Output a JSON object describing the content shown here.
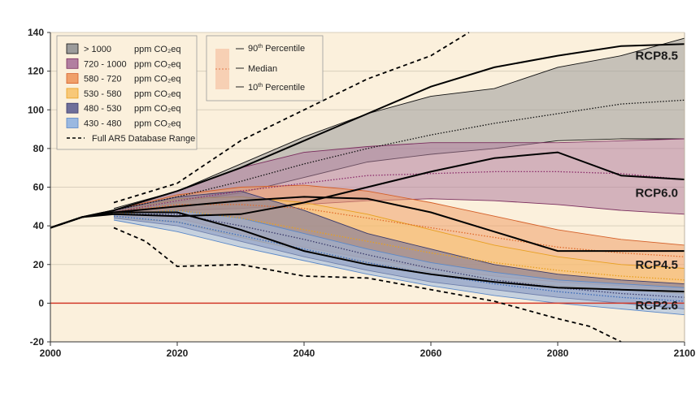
{
  "chart_data": {
    "type": "area",
    "title": "",
    "xlabel": "",
    "ylabel": "",
    "xlim": [
      2000,
      2100
    ],
    "ylim": [
      -20,
      140
    ],
    "xticks": [
      2000,
      2020,
      2040,
      2060,
      2080,
      2100
    ],
    "yticks": [
      -20,
      0,
      20,
      40,
      60,
      80,
      100,
      120,
      140
    ],
    "grid": "horizontal",
    "legend_position": "top-left",
    "background_color": "#fbf0dc",
    "zero_line_color": "#d23a2a",
    "historical": {
      "x": [
        2000,
        2005,
        2010
      ],
      "y": [
        39,
        44.5,
        48
      ]
    },
    "series": [
      {
        "name": "> 1000",
        "unit": "ppm CO₂eq",
        "fill": "#9b9b9b",
        "edge": "#111111",
        "median_color": "#111111",
        "x": [
          2010,
          2020,
          2030,
          2040,
          2050,
          2060,
          2070,
          2080,
          2090,
          2100
        ],
        "p90": [
          49,
          58,
          72,
          86,
          98,
          107,
          111,
          122,
          128,
          137
        ],
        "median": [
          48,
          55,
          63,
          72,
          80,
          87,
          93,
          98,
          103,
          105
        ],
        "p10": [
          47,
          52,
          57,
          65,
          73,
          77,
          80,
          84,
          85,
          85
        ]
      },
      {
        "name": "720 - 1000",
        "unit": "ppm CO₂eq",
        "fill": "#b27fa0",
        "edge": "#7a2e5e",
        "median_color": "#8a2a6a",
        "x": [
          2010,
          2020,
          2030,
          2040,
          2050,
          2060,
          2070,
          2080,
          2090,
          2100
        ],
        "p90": [
          48,
          58,
          70,
          78,
          81,
          83,
          83,
          83,
          84,
          85
        ],
        "median": [
          47,
          53,
          58,
          62,
          66,
          67,
          68,
          68,
          67,
          64
        ],
        "p10": [
          46,
          48,
          49,
          51,
          53,
          54,
          53,
          51,
          48,
          46
        ]
      },
      {
        "name": "580 - 720",
        "unit": "ppm CO₂eq",
        "fill": "#f0a06a",
        "edge": "#d4602a",
        "median_color": "#e06a2a",
        "x": [
          2010,
          2020,
          2030,
          2040,
          2050,
          2060,
          2070,
          2080,
          2090,
          2100
        ],
        "p90": [
          48,
          56,
          60,
          61,
          58,
          52,
          45,
          38,
          33,
          30
        ],
        "median": [
          47,
          51,
          51,
          49,
          44,
          39,
          34,
          29,
          26,
          24
        ],
        "p10": [
          45,
          44,
          36,
          29,
          23,
          18,
          14,
          11,
          9,
          7
        ]
      },
      {
        "name": "530 - 580",
        "unit": "ppm CO₂eq",
        "fill": "#f8c878",
        "edge": "#e8a020",
        "median_color": "#e8a020",
        "x": [
          2010,
          2020,
          2030,
          2040,
          2050,
          2060,
          2070,
          2080,
          2090,
          2100
        ],
        "p90": [
          47,
          54,
          55,
          52,
          46,
          38,
          30,
          24,
          20,
          18
        ],
        "median": [
          46,
          48,
          44,
          38,
          32,
          26,
          21,
          17,
          14,
          12
        ],
        "p10": [
          44,
          42,
          34,
          27,
          21,
          16,
          12,
          9,
          7,
          5
        ]
      },
      {
        "name": "480 - 530",
        "unit": "ppm CO₂eq",
        "fill": "#6f6f9a",
        "edge": "#3a3a6a",
        "median_color": "#3a3a6a",
        "x": [
          2010,
          2020,
          2030,
          2040,
          2050,
          2060,
          2070,
          2080,
          2090,
          2100
        ],
        "p90": [
          48,
          55,
          58,
          48,
          36,
          28,
          20,
          15,
          12,
          10
        ],
        "median": [
          46,
          46,
          40,
          33,
          25,
          18,
          12,
          8,
          5,
          3
        ],
        "p10": [
          44,
          40,
          32,
          24,
          17,
          11,
          7,
          3,
          0,
          -3
        ]
      },
      {
        "name": "430 - 480",
        "unit": "ppm CO₂eq",
        "fill": "#9ab8e0",
        "edge": "#5a88c8",
        "median_color": "#3a6ab8",
        "x": [
          2010,
          2020,
          2030,
          2040,
          2050,
          2060,
          2070,
          2080,
          2090,
          2100
        ],
        "p90": [
          46,
          48,
          44,
          36,
          28,
          21,
          16,
          12,
          10,
          8
        ],
        "median": [
          45,
          42,
          35,
          28,
          21,
          15,
          10,
          6,
          3,
          1
        ],
        "p10": [
          43,
          37,
          29,
          22,
          15,
          9,
          4,
          0,
          -3,
          -6
        ]
      }
    ],
    "range": {
      "name": "Full AR5 Database Range",
      "upper": {
        "x": [
          2010,
          2020,
          2030,
          2040,
          2050,
          2060,
          2066
        ],
        "y": [
          52,
          62,
          84,
          100,
          116,
          128,
          140
        ]
      },
      "lower": {
        "x": [
          2010,
          2015,
          2020,
          2030,
          2040,
          2050,
          2060,
          2070,
          2080,
          2085,
          2090
        ],
        "y": [
          39,
          32,
          19,
          20,
          14,
          13,
          7,
          1,
          -8,
          -12,
          -20
        ]
      }
    },
    "rcp_lines": [
      {
        "name": "RCP8.5",
        "label_y": 128,
        "x": [
          2000,
          2005,
          2010,
          2020,
          2030,
          2040,
          2050,
          2060,
          2070,
          2080,
          2090,
          2100
        ],
        "y": [
          39,
          44.5,
          48,
          58,
          70,
          84,
          98,
          112,
          122,
          128,
          133,
          134
        ]
      },
      {
        "name": "RCP6.0",
        "label_y": 57,
        "x": [
          2000,
          2005,
          2010,
          2020,
          2030,
          2040,
          2050,
          2060,
          2070,
          2080,
          2090,
          2100
        ],
        "y": [
          39,
          44.5,
          46,
          45,
          46,
          52,
          60,
          68,
          75,
          78,
          66,
          64
        ]
      },
      {
        "name": "RCP4.5",
        "label_y": 20,
        "x": [
          2000,
          2005,
          2010,
          2020,
          2030,
          2040,
          2050,
          2060,
          2070,
          2080,
          2090,
          2100
        ],
        "y": [
          39,
          44.5,
          47,
          50,
          53,
          55,
          54,
          47,
          37,
          27,
          27,
          27
        ]
      },
      {
        "name": "RCP2.6",
        "label_y": -1,
        "x": [
          2000,
          2005,
          2010,
          2020,
          2030,
          2040,
          2050,
          2060,
          2070,
          2080,
          2090,
          2100
        ],
        "y": [
          39,
          44.5,
          47,
          47,
          38,
          27,
          20,
          15,
          11,
          8,
          7,
          6
        ]
      }
    ],
    "percentile_legend": [
      "90th Percentile",
      "Median",
      "10th Percentile"
    ]
  },
  "legend": {
    "items": [
      {
        "label": "> 1000",
        "unit": "ppm CO₂eq"
      },
      {
        "label": "720 - 1000",
        "unit": "ppm CO₂eq"
      },
      {
        "label": "580 - 720",
        "unit": "ppm CO₂eq"
      },
      {
        "label": "530 - 580",
        "unit": "ppm CO₂eq"
      },
      {
        "label": "480 - 530",
        "unit": "ppm CO₂eq"
      },
      {
        "label": "430 - 480",
        "unit": "ppm CO₂eq"
      }
    ],
    "range_label": "Full AR5 Database Range",
    "p90_label_pre": "90",
    "p90_sup": "th",
    "p90_label_post": " Percentile",
    "median_label": "Median",
    "p10_label_pre": "10",
    "p10_sup": "th",
    "p10_label_post": " Percentile"
  }
}
